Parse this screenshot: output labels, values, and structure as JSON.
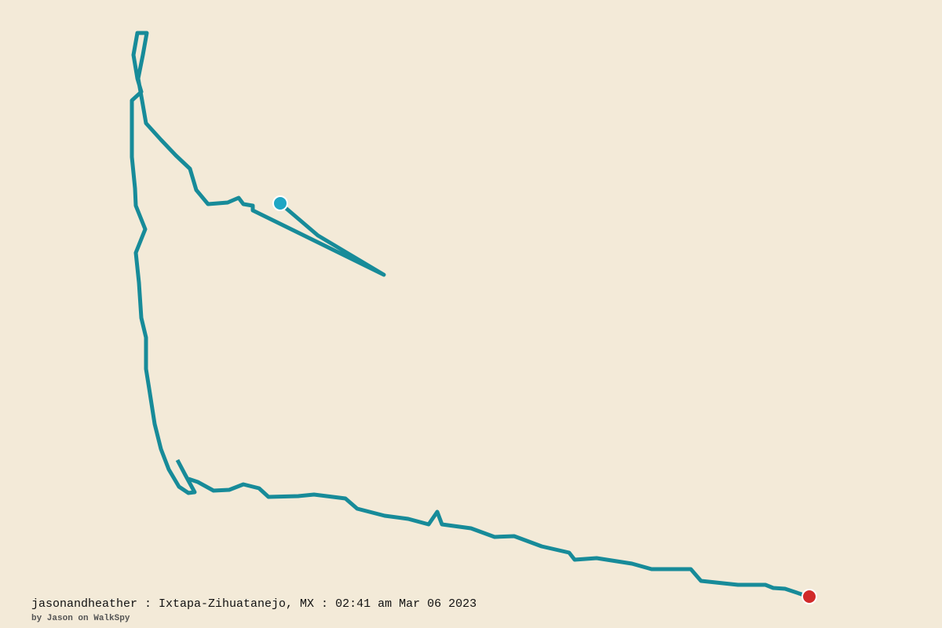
{
  "caption": {
    "title": "jasonandheather : Ixtapa-Zihuatanejo, MX : 02:41 am Mar 06 2023",
    "credit": "by Jason on WalkSpy"
  }
}
